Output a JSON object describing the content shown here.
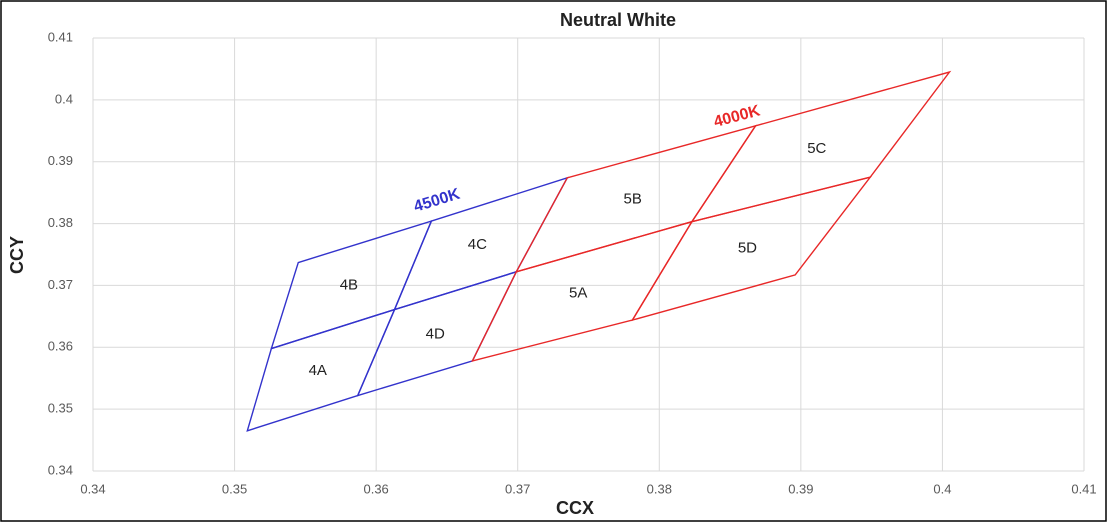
{
  "chart_data": {
    "type": "polygon",
    "title": "Neutral White",
    "x_label": "CCX",
    "y_label": "CCY",
    "xlim": [
      0.34,
      0.41
    ],
    "ylim": [
      0.34,
      0.41
    ],
    "xticks": [
      0.34,
      0.35,
      0.36,
      0.37,
      0.38,
      0.39,
      0.4,
      0.41
    ],
    "yticks": [
      0.34,
      0.35,
      0.36,
      0.37,
      0.38,
      0.39,
      0.4,
      0.41
    ],
    "grid": true,
    "annotations": [
      {
        "text": "4500K",
        "color": "#3333cc"
      },
      {
        "text": "4000K",
        "color": "#e82828"
      }
    ],
    "series": [
      {
        "name": "4A",
        "color": "#3333cc",
        "x": [
          0.3509,
          0.3587,
          0.3613,
          0.3526
        ],
        "values": [
          0.3465,
          0.3522,
          0.3661,
          0.3598
        ]
      },
      {
        "name": "4B",
        "color": "#3333cc",
        "x": [
          0.3526,
          0.3613,
          0.3639,
          0.3545
        ],
        "values": [
          0.3598,
          0.3661,
          0.3804,
          0.3737
        ]
      },
      {
        "name": "4C",
        "color": "#3333cc",
        "x": [
          0.3613,
          0.3699,
          0.3735,
          0.3639
        ],
        "values": [
          0.3661,
          0.3722,
          0.3874,
          0.3804
        ]
      },
      {
        "name": "4D",
        "color": "#3333cc",
        "x": [
          0.3587,
          0.3668,
          0.3699,
          0.3613
        ],
        "values": [
          0.3522,
          0.3578,
          0.3722,
          0.3661
        ]
      },
      {
        "name": "5A",
        "color": "#e82828",
        "x": [
          0.3668,
          0.3781,
          0.3823,
          0.3699
        ],
        "values": [
          0.3578,
          0.3644,
          0.3803,
          0.3722
        ]
      },
      {
        "name": "5B",
        "color": "#e82828",
        "x": [
          0.3699,
          0.3823,
          0.3868,
          0.3735
        ],
        "values": [
          0.3722,
          0.3803,
          0.3958,
          0.3874
        ]
      },
      {
        "name": "5C",
        "color": "#e82828",
        "x": [
          0.3823,
          0.3949,
          0.4005,
          0.3868
        ],
        "values": [
          0.3803,
          0.3875,
          0.4045,
          0.3958
        ]
      },
      {
        "name": "5D",
        "color": "#e82828",
        "x": [
          0.3781,
          0.3896,
          0.3949,
          0.3823
        ],
        "values": [
          0.3644,
          0.3717,
          0.3875,
          0.3803
        ]
      }
    ]
  }
}
